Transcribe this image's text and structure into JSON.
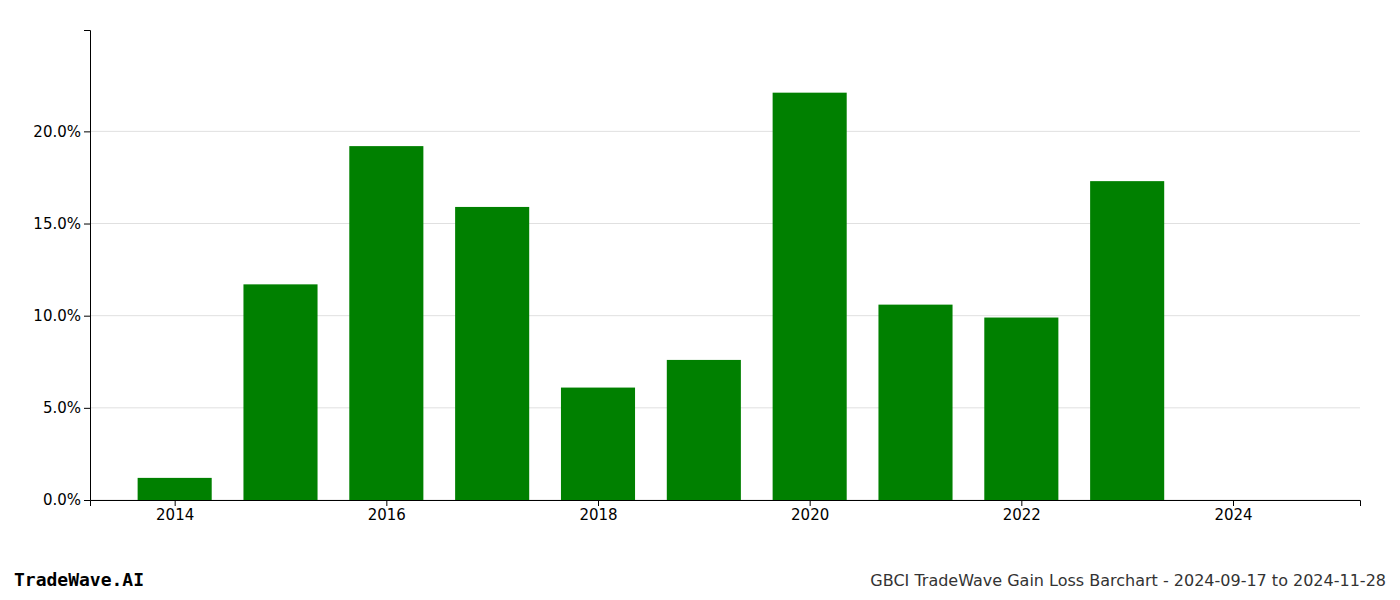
{
  "chart_data": {
    "type": "bar",
    "title": "GBCI TradeWave Gain Loss Barchart - 2024-09-17 to 2024-11-28",
    "annotations": [
      "TradeWave.AI"
    ],
    "x": [
      2014,
      2015,
      2016,
      2017,
      2018,
      2019,
      2020,
      2021,
      2022,
      2023
    ],
    "values": [
      0.012,
      0.117,
      0.192,
      0.159,
      0.061,
      0.076,
      0.221,
      0.106,
      0.099,
      0.173
    ],
    "color": "#008000",
    "ylim": [
      0.0,
      0.255
    ],
    "yticks": [
      {
        "value": 0.0,
        "label": "0.0%"
      },
      {
        "value": 0.05,
        "label": "5.0%"
      },
      {
        "value": 0.1,
        "label": "10.0%"
      },
      {
        "value": 0.15,
        "label": "15.0%"
      },
      {
        "value": 0.2,
        "label": "20.0%"
      }
    ],
    "xlim": [
      2013.2,
      2025.2
    ],
    "xticks": [
      2014,
      2016,
      2018,
      2020,
      2022,
      2024
    ],
    "grid": "y"
  }
}
